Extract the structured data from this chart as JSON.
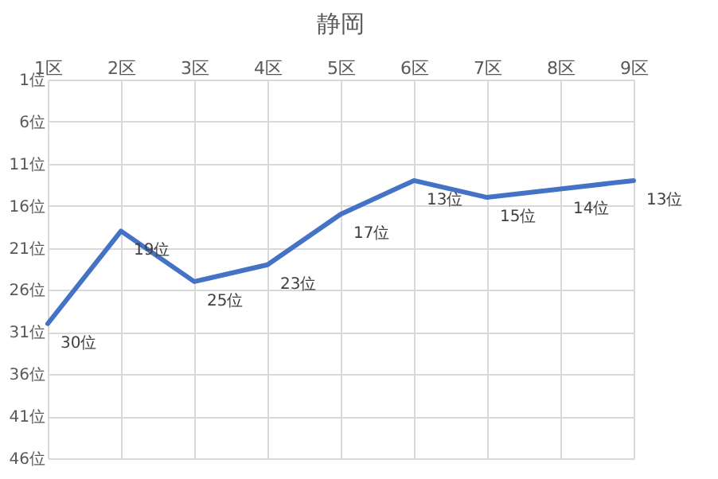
{
  "chart_data": {
    "type": "line",
    "title": "静岡",
    "categories": [
      "1区",
      "2区",
      "3区",
      "4区",
      "5区",
      "6区",
      "7区",
      "8区",
      "9区"
    ],
    "series": [
      {
        "color": "#4472c4",
        "values": [
          30,
          19,
          25,
          23,
          17,
          13,
          15,
          14,
          13
        ],
        "value_labels": [
          "30位",
          "19位",
          "25位",
          "23位",
          "17位",
          "13位",
          "15位",
          "14位",
          "13位"
        ]
      }
    ],
    "ylim": [
      46,
      1
    ],
    "yticks": [
      {
        "value": 1,
        "label": "1位"
      },
      {
        "value": 6,
        "label": "6位"
      },
      {
        "value": 11,
        "label": "11位"
      },
      {
        "value": 16,
        "label": "16位"
      },
      {
        "value": 21,
        "label": "21位"
      },
      {
        "value": 26,
        "label": "26位"
      },
      {
        "value": 31,
        "label": "31位"
      },
      {
        "value": 36,
        "label": "36位"
      },
      {
        "value": 41,
        "label": "41位"
      },
      {
        "value": 46,
        "label": "46位"
      }
    ],
    "grid": true,
    "legend": false,
    "marker": "none",
    "line_style": "solid"
  }
}
